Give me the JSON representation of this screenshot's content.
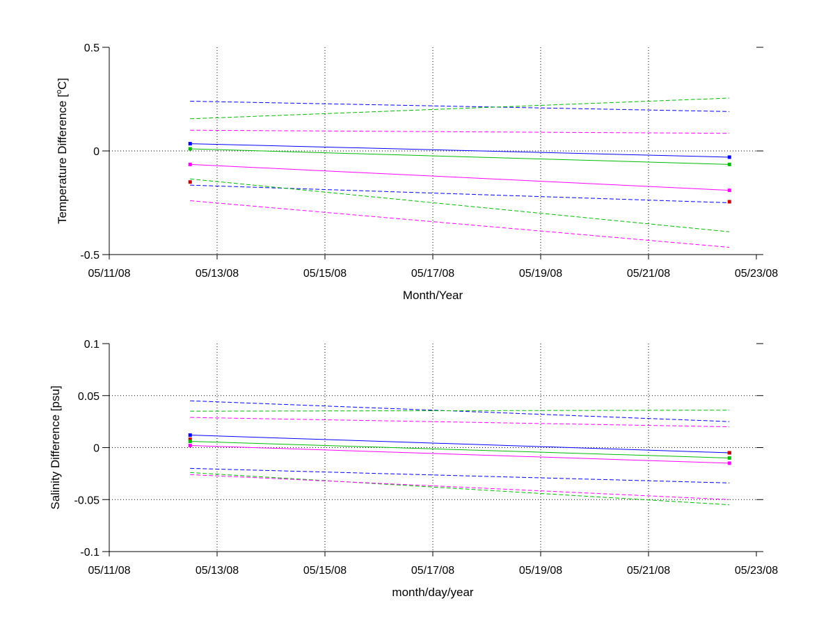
{
  "chart_data": [
    {
      "type": "line",
      "ylabel_prefix": "Temperature Difference [",
      "ylabel_superscript": "o",
      "ylabel_suffix": "C]",
      "xlabel": "Month/Year",
      "xlim": [
        "2008-05-11",
        "2008-05-23"
      ],
      "ylim": [
        -0.5,
        0.5
      ],
      "x_ticks": [
        "05/11/08",
        "05/13/08",
        "05/15/08",
        "05/17/08",
        "05/19/08",
        "05/21/08",
        "05/23/08"
      ],
      "y_ticks": [
        {
          "value": -0.5,
          "label": "-0.5"
        },
        {
          "value": 0,
          "label": "0"
        },
        {
          "value": 0.5,
          "label": "0.5"
        }
      ],
      "grid": true,
      "series": [
        {
          "color": "#0000ff",
          "style": "solid",
          "x": [
            "2008-05-12.5",
            "2008-05-22.5"
          ],
          "y": [
            0.035,
            -0.03
          ]
        },
        {
          "color": "#00bb00",
          "style": "solid",
          "x": [
            "2008-05-12.5",
            "2008-05-22.5"
          ],
          "y": [
            0.01,
            -0.065
          ]
        },
        {
          "color": "#ff00ff",
          "style": "solid",
          "x": [
            "2008-05-12.5",
            "2008-05-22.5"
          ],
          "y": [
            -0.065,
            -0.19
          ]
        },
        {
          "color": "#0000ff",
          "style": "dashed",
          "x": [
            "2008-05-12.5",
            "2008-05-22.5"
          ],
          "y": [
            0.24,
            0.19
          ]
        },
        {
          "color": "#00bb00",
          "style": "dashed",
          "x": [
            "2008-05-12.5",
            "2008-05-22.5"
          ],
          "y": [
            0.155,
            0.255
          ]
        },
        {
          "color": "#ff00ff",
          "style": "dashed",
          "x": [
            "2008-05-12.5",
            "2008-05-22.5"
          ],
          "y": [
            0.1,
            0.085
          ]
        },
        {
          "color": "#0000ff",
          "style": "dashed",
          "x": [
            "2008-05-12.5",
            "2008-05-22.5"
          ],
          "y": [
            -0.165,
            -0.25
          ]
        },
        {
          "color": "#00bb00",
          "style": "dashed",
          "x": [
            "2008-05-12.5",
            "2008-05-22.5"
          ],
          "y": [
            -0.135,
            -0.39
          ]
        },
        {
          "color": "#ff00ff",
          "style": "dashed",
          "x": [
            "2008-05-12.5",
            "2008-05-22.5"
          ],
          "y": [
            -0.24,
            -0.465
          ]
        }
      ],
      "points": [
        {
          "color": "#0000ff",
          "x": "2008-05-12.5",
          "y": 0.035
        },
        {
          "color": "#00bb00",
          "x": "2008-05-12.5",
          "y": 0.01
        },
        {
          "color": "#ff00ff",
          "x": "2008-05-12.5",
          "y": -0.065
        },
        {
          "color": "#cc0000",
          "x": "2008-05-12.5",
          "y": -0.15
        },
        {
          "color": "#0000ff",
          "x": "2008-05-22.5",
          "y": -0.03
        },
        {
          "color": "#00bb00",
          "x": "2008-05-22.5",
          "y": -0.065
        },
        {
          "color": "#ff00ff",
          "x": "2008-05-22.5",
          "y": -0.19
        },
        {
          "color": "#cc0000",
          "x": "2008-05-22.5",
          "y": -0.245
        }
      ]
    },
    {
      "type": "line",
      "ylabel": "Salinity Difference [psu]",
      "xlabel": "month/day/year",
      "xlim": [
        "2008-05-11",
        "2008-05-23"
      ],
      "ylim": [
        -0.1,
        0.1
      ],
      "x_ticks": [
        "05/11/08",
        "05/13/08",
        "05/15/08",
        "05/17/08",
        "05/19/08",
        "05/21/08",
        "05/23/08"
      ],
      "y_ticks": [
        {
          "value": -0.1,
          "label": "-0.1"
        },
        {
          "value": -0.05,
          "label": "-0.05"
        },
        {
          "value": 0,
          "label": "0"
        },
        {
          "value": 0.05,
          "label": "0.05"
        },
        {
          "value": 0.1,
          "label": "0.1"
        }
      ],
      "grid": true,
      "series": [
        {
          "color": "#0000ff",
          "style": "solid",
          "x": [
            "2008-05-12.5",
            "2008-05-22.5"
          ],
          "y": [
            0.012,
            -0.005
          ]
        },
        {
          "color": "#00bb00",
          "style": "solid",
          "x": [
            "2008-05-12.5",
            "2008-05-22.5"
          ],
          "y": [
            0.006,
            -0.01
          ]
        },
        {
          "color": "#ff00ff",
          "style": "solid",
          "x": [
            "2008-05-12.5",
            "2008-05-22.5"
          ],
          "y": [
            0.002,
            -0.015
          ]
        },
        {
          "color": "#0000ff",
          "style": "dashed",
          "x": [
            "2008-05-12.5",
            "2008-05-22.5"
          ],
          "y": [
            0.045,
            0.025
          ]
        },
        {
          "color": "#00bb00",
          "style": "dashed",
          "x": [
            "2008-05-12.5",
            "2008-05-22.5"
          ],
          "y": [
            0.035,
            0.036
          ]
        },
        {
          "color": "#ff00ff",
          "style": "dashed",
          "x": [
            "2008-05-12.5",
            "2008-05-22.5"
          ],
          "y": [
            0.029,
            0.02
          ]
        },
        {
          "color": "#0000ff",
          "style": "dashed",
          "x": [
            "2008-05-12.5",
            "2008-05-22.5"
          ],
          "y": [
            -0.02,
            -0.034
          ]
        },
        {
          "color": "#00bb00",
          "style": "dashed",
          "x": [
            "2008-05-12.5",
            "2008-05-22.5"
          ],
          "y": [
            -0.024,
            -0.055
          ]
        },
        {
          "color": "#ff00ff",
          "style": "dashed",
          "x": [
            "2008-05-12.5",
            "2008-05-22.5"
          ],
          "y": [
            -0.026,
            -0.05
          ]
        }
      ],
      "points": [
        {
          "color": "#0000ff",
          "x": "2008-05-12.5",
          "y": 0.012
        },
        {
          "color": "#cc0000",
          "x": "2008-05-12.5",
          "y": 0.008
        },
        {
          "color": "#00bb00",
          "x": "2008-05-12.5",
          "y": 0.006
        },
        {
          "color": "#ff00ff",
          "x": "2008-05-12.5",
          "y": 0.002
        },
        {
          "color": "#0000ff",
          "x": "2008-05-22.5",
          "y": -0.005
        },
        {
          "color": "#cc0000",
          "x": "2008-05-22.5",
          "y": -0.005
        },
        {
          "color": "#00bb00",
          "x": "2008-05-22.5",
          "y": -0.01
        },
        {
          "color": "#ff00ff",
          "x": "2008-05-22.5",
          "y": -0.015
        }
      ]
    }
  ]
}
